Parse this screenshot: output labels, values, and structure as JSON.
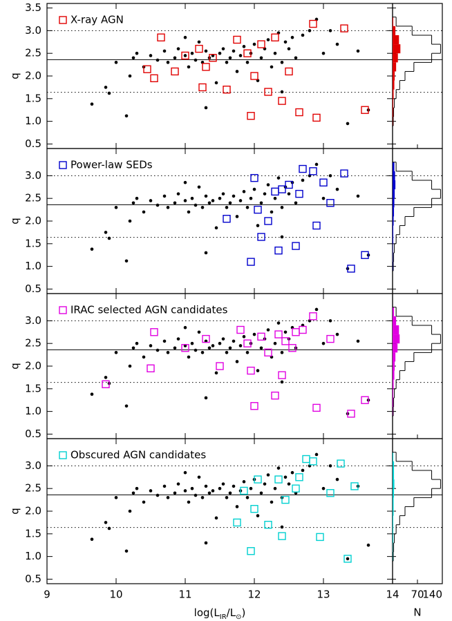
{
  "chart_data": [
    {
      "type": "scatter",
      "ylabel": "q",
      "xlim": [
        9,
        14
      ],
      "xticks": [
        9,
        10,
        11,
        12,
        13,
        14
      ],
      "ylim": [
        0.4,
        3.6
      ],
      "yticks": [
        0.5,
        1.0,
        1.5,
        2.0,
        2.5,
        3.0,
        3.5
      ],
      "reference_lines": [
        {
          "value": 2.36,
          "style": "solid"
        },
        {
          "value": 3.0,
          "style": "dotted"
        },
        {
          "value": 1.64,
          "style": "dotted"
        }
      ],
      "series": [
        {
          "marker": "dot",
          "color": "#000000",
          "x": [
            9.65,
            9.85,
            9.9,
            10.0,
            10.15,
            10.25,
            10.3,
            10.4,
            10.5,
            10.6,
            10.7,
            10.75,
            10.85,
            10.9,
            11.0,
            11.05,
            11.1,
            11.15,
            11.2,
            11.25,
            11.3,
            11.35,
            11.4,
            11.45,
            11.5,
            11.55,
            11.6,
            11.65,
            11.7,
            11.75,
            11.8,
            11.85,
            11.9,
            11.95,
            12.0,
            12.05,
            12.1,
            12.15,
            12.2,
            12.25,
            12.3,
            12.35,
            12.4,
            12.45,
            12.5,
            12.55,
            12.6,
            12.7,
            12.8,
            12.9,
            13.0,
            13.1,
            13.2,
            13.35,
            13.5,
            13.65,
            10.2,
            11.3,
            12.4,
            11.0
          ],
          "values": [
            1.38,
            1.75,
            1.62,
            2.3,
            1.12,
            2.4,
            2.5,
            2.2,
            2.45,
            2.35,
            2.55,
            2.3,
            2.4,
            2.6,
            2.45,
            2.2,
            2.5,
            2.35,
            2.75,
            2.3,
            2.55,
            2.4,
            2.45,
            1.85,
            2.5,
            2.6,
            2.3,
            2.4,
            2.55,
            2.1,
            2.45,
            2.65,
            2.3,
            2.5,
            2.7,
            1.9,
            2.4,
            2.6,
            2.8,
            2.2,
            2.5,
            2.95,
            2.3,
            2.75,
            2.6,
            2.85,
            2.4,
            2.9,
            3.0,
            3.25,
            2.5,
            3.0,
            2.7,
            0.95,
            2.55,
            1.25,
            2.0,
            1.3,
            1.65,
            2.85
          ]
        },
        {
          "name": "X-ray AGN",
          "marker": "square",
          "color": "#e00000",
          "x": [
            10.45,
            10.55,
            10.65,
            10.85,
            11.0,
            11.2,
            11.25,
            11.4,
            11.6,
            11.75,
            11.9,
            11.95,
            12.1,
            12.2,
            12.3,
            12.5,
            12.65,
            12.85,
            12.9,
            13.3,
            13.6,
            11.3,
            12.4,
            12.0
          ],
          "values": [
            2.15,
            1.95,
            2.85,
            2.1,
            2.45,
            2.6,
            1.75,
            2.4,
            1.7,
            2.8,
            2.5,
            1.12,
            2.7,
            1.65,
            2.85,
            2.1,
            1.2,
            3.15,
            1.08,
            3.05,
            1.25,
            2.2,
            1.45,
            2.0
          ]
        }
      ],
      "histogram": {
        "bins": [
          0.9,
          1.1,
          1.3,
          1.5,
          1.7,
          1.9,
          2.1,
          2.3,
          2.5,
          2.7,
          2.9,
          3.1,
          3.3
        ],
        "counts_all": [
          2,
          3,
          5,
          10,
          20,
          35,
          60,
          110,
          135,
          110,
          55,
          10
        ],
        "counts_selected": [
          1,
          2,
          2,
          3,
          5,
          6,
          10,
          15,
          22,
          18,
          8,
          2
        ],
        "xlim": [
          0,
          140
        ],
        "xticks": [
          70,
          140
        ]
      }
    },
    {
      "type": "scatter",
      "ylabel": "q",
      "xlim": [
        9,
        14
      ],
      "xticks": [
        9,
        10,
        11,
        12,
        13,
        14
      ],
      "ylim": [
        0.4,
        3.6
      ],
      "yticks": [
        0.5,
        1.0,
        1.5,
        2.0,
        2.5,
        3.0
      ],
      "reference_lines": [
        {
          "value": 2.36,
          "style": "solid"
        },
        {
          "value": 3.0,
          "style": "dotted"
        },
        {
          "value": 1.64,
          "style": "dotted"
        }
      ],
      "series": [
        {
          "marker": "dot",
          "color": "#000000",
          "x": [
            9.65,
            9.85,
            9.9,
            10.0,
            10.15,
            10.25,
            10.3,
            10.4,
            10.5,
            10.6,
            10.7,
            10.75,
            10.85,
            10.9,
            11.0,
            11.05,
            11.1,
            11.15,
            11.2,
            11.25,
            11.3,
            11.35,
            11.4,
            11.45,
            11.5,
            11.55,
            11.6,
            11.65,
            11.7,
            11.75,
            11.8,
            11.85,
            11.9,
            11.95,
            12.0,
            12.05,
            12.1,
            12.15,
            12.2,
            12.25,
            12.3,
            12.35,
            12.4,
            12.45,
            12.5,
            12.55,
            12.6,
            12.7,
            12.8,
            12.9,
            13.0,
            13.1,
            13.2,
            13.35,
            13.5,
            13.65,
            10.2,
            11.3,
            12.4,
            11.0
          ],
          "values": [
            1.38,
            1.75,
            1.62,
            2.3,
            1.12,
            2.4,
            2.5,
            2.2,
            2.45,
            2.35,
            2.55,
            2.3,
            2.4,
            2.6,
            2.45,
            2.2,
            2.5,
            2.35,
            2.75,
            2.3,
            2.55,
            2.4,
            2.45,
            1.85,
            2.5,
            2.6,
            2.3,
            2.4,
            2.55,
            2.1,
            2.45,
            2.65,
            2.3,
            2.5,
            2.7,
            1.9,
            2.4,
            2.6,
            2.8,
            2.2,
            2.5,
            2.95,
            2.3,
            2.75,
            2.6,
            2.85,
            2.4,
            2.9,
            3.0,
            3.25,
            2.5,
            3.0,
            2.7,
            0.95,
            2.55,
            1.25,
            2.0,
            1.3,
            1.65,
            2.85
          ]
        },
        {
          "name": "Power-law SEDs",
          "marker": "square",
          "color": "#0000cc",
          "x": [
            11.6,
            11.95,
            12.0,
            12.05,
            12.1,
            12.2,
            12.3,
            12.35,
            12.4,
            12.5,
            12.6,
            12.65,
            12.7,
            12.85,
            12.9,
            13.0,
            13.1,
            13.3,
            13.4,
            13.6
          ],
          "values": [
            2.05,
            1.1,
            2.95,
            2.25,
            1.65,
            2.0,
            2.65,
            1.35,
            2.7,
            2.8,
            1.45,
            2.6,
            3.15,
            3.1,
            1.9,
            2.85,
            2.4,
            3.05,
            0.95,
            1.25
          ]
        }
      ],
      "histogram": {
        "bins": [
          0.9,
          1.1,
          1.3,
          1.5,
          1.7,
          1.9,
          2.1,
          2.3,
          2.5,
          2.7,
          2.9,
          3.1,
          3.3
        ],
        "counts_all": [
          2,
          3,
          5,
          10,
          20,
          35,
          60,
          110,
          135,
          110,
          55,
          10
        ],
        "counts_selected": [
          1,
          1,
          1,
          2,
          2,
          3,
          4,
          5,
          6,
          8,
          7,
          5
        ],
        "xlim": [
          0,
          140
        ],
        "xticks": [
          70,
          140
        ]
      }
    },
    {
      "type": "scatter",
      "ylabel": "q",
      "xlim": [
        9,
        14
      ],
      "xticks": [
        9,
        10,
        11,
        12,
        13,
        14
      ],
      "ylim": [
        0.4,
        3.6
      ],
      "yticks": [
        0.5,
        1.0,
        1.5,
        2.0,
        2.5,
        3.0
      ],
      "reference_lines": [
        {
          "value": 2.36,
          "style": "solid"
        },
        {
          "value": 3.0,
          "style": "dotted"
        },
        {
          "value": 1.64,
          "style": "dotted"
        }
      ],
      "series": [
        {
          "marker": "dot",
          "color": "#000000",
          "x": [
            9.65,
            9.85,
            9.9,
            10.0,
            10.15,
            10.25,
            10.3,
            10.4,
            10.5,
            10.6,
            10.7,
            10.75,
            10.85,
            10.9,
            11.0,
            11.05,
            11.1,
            11.15,
            11.2,
            11.25,
            11.3,
            11.35,
            11.4,
            11.45,
            11.5,
            11.55,
            11.6,
            11.65,
            11.7,
            11.75,
            11.8,
            11.85,
            11.9,
            11.95,
            12.0,
            12.05,
            12.1,
            12.15,
            12.2,
            12.25,
            12.3,
            12.35,
            12.4,
            12.45,
            12.5,
            12.55,
            12.6,
            12.7,
            12.8,
            12.9,
            13.0,
            13.1,
            13.2,
            13.35,
            13.5,
            13.65,
            10.2,
            11.3,
            12.4,
            11.0
          ],
          "values": [
            1.38,
            1.75,
            1.62,
            2.3,
            1.12,
            2.4,
            2.5,
            2.2,
            2.45,
            2.35,
            2.55,
            2.3,
            2.4,
            2.6,
            2.45,
            2.2,
            2.5,
            2.35,
            2.75,
            2.3,
            2.55,
            2.4,
            2.45,
            1.85,
            2.5,
            2.6,
            2.3,
            2.4,
            2.55,
            2.1,
            2.45,
            2.65,
            2.3,
            2.5,
            2.7,
            1.9,
            2.4,
            2.6,
            2.8,
            2.2,
            2.5,
            2.95,
            2.3,
            2.75,
            2.6,
            2.85,
            2.4,
            2.9,
            3.0,
            3.25,
            2.5,
            3.0,
            2.7,
            0.95,
            2.55,
            1.25,
            2.0,
            1.3,
            1.65,
            2.85
          ]
        },
        {
          "name": "IRAC selected AGN candidates",
          "marker": "square",
          "color": "#e000e0",
          "x": [
            9.85,
            10.5,
            10.55,
            11.0,
            11.3,
            11.5,
            11.8,
            11.9,
            12.0,
            12.1,
            12.2,
            12.3,
            12.35,
            12.45,
            12.6,
            12.7,
            12.85,
            12.9,
            13.1,
            13.4,
            13.6,
            11.95,
            12.4,
            12.55
          ],
          "values": [
            1.6,
            1.95,
            2.75,
            2.4,
            2.6,
            2.0,
            2.8,
            2.5,
            1.12,
            2.65,
            2.3,
            1.35,
            2.7,
            2.55,
            2.75,
            2.8,
            3.1,
            1.08,
            2.6,
            0.95,
            1.25,
            1.9,
            1.8,
            2.4
          ]
        }
      ],
      "histogram": {
        "bins": [
          0.9,
          1.1,
          1.3,
          1.5,
          1.7,
          1.9,
          2.1,
          2.3,
          2.5,
          2.7,
          2.9,
          3.1,
          3.3
        ],
        "counts_all": [
          2,
          3,
          5,
          10,
          20,
          35,
          60,
          110,
          135,
          110,
          55,
          10
        ],
        "counts_selected": [
          1,
          2,
          2,
          3,
          5,
          6,
          8,
          14,
          20,
          18,
          10,
          4
        ],
        "xlim": [
          0,
          140
        ],
        "xticks": [
          70,
          140
        ]
      }
    },
    {
      "type": "scatter",
      "ylabel": "q",
      "xlabel": [
        "log(L",
        "IR",
        "/L",
        "⊙",
        ")"
      ],
      "xlim": [
        9,
        14
      ],
      "xticks": [
        9,
        10,
        11,
        12,
        13,
        14
      ],
      "ylim": [
        0.4,
        3.6
      ],
      "yticks": [
        0.5,
        1.0,
        1.5,
        2.0,
        2.5,
        3.0
      ],
      "reference_lines": [
        {
          "value": 2.36,
          "style": "solid"
        },
        {
          "value": 3.0,
          "style": "dotted"
        },
        {
          "value": 1.64,
          "style": "dotted"
        }
      ],
      "series": [
        {
          "marker": "dot",
          "color": "#000000",
          "x": [
            9.65,
            9.85,
            9.9,
            10.0,
            10.15,
            10.25,
            10.3,
            10.4,
            10.5,
            10.6,
            10.7,
            10.75,
            10.85,
            10.9,
            11.0,
            11.05,
            11.1,
            11.15,
            11.2,
            11.25,
            11.3,
            11.35,
            11.4,
            11.45,
            11.5,
            11.55,
            11.6,
            11.65,
            11.7,
            11.75,
            11.8,
            11.85,
            11.9,
            11.95,
            12.0,
            12.05,
            12.1,
            12.15,
            12.2,
            12.25,
            12.3,
            12.35,
            12.4,
            12.45,
            12.5,
            12.55,
            12.6,
            12.7,
            12.8,
            12.9,
            13.0,
            13.1,
            13.2,
            13.35,
            13.5,
            13.65,
            10.2,
            11.3,
            12.4,
            11.0
          ],
          "values": [
            1.38,
            1.75,
            1.62,
            2.3,
            1.12,
            2.4,
            2.5,
            2.2,
            2.45,
            2.35,
            2.55,
            2.3,
            2.4,
            2.6,
            2.45,
            2.2,
            2.5,
            2.35,
            2.75,
            2.3,
            2.55,
            2.4,
            2.45,
            1.85,
            2.5,
            2.6,
            2.3,
            2.4,
            2.55,
            2.1,
            2.45,
            2.65,
            2.3,
            2.5,
            2.7,
            1.9,
            2.4,
            2.6,
            2.8,
            2.2,
            2.5,
            2.95,
            2.3,
            2.75,
            2.6,
            2.85,
            2.4,
            2.9,
            3.0,
            3.25,
            2.5,
            3.0,
            2.7,
            0.95,
            2.55,
            1.25,
            2.0,
            1.3,
            1.65,
            2.85
          ]
        },
        {
          "name": "Obscured AGN candidates",
          "marker": "square",
          "color": "#00d0d0",
          "x": [
            11.75,
            11.85,
            11.95,
            12.0,
            12.05,
            12.2,
            12.35,
            12.4,
            12.45,
            12.6,
            12.65,
            12.75,
            12.85,
            12.95,
            13.1,
            13.25,
            13.35,
            13.45
          ],
          "values": [
            1.75,
            2.45,
            1.12,
            2.05,
            2.7,
            1.7,
            2.7,
            1.45,
            2.25,
            2.5,
            2.75,
            3.15,
            3.1,
            1.43,
            2.4,
            3.05,
            0.95,
            2.55
          ]
        }
      ],
      "histogram": {
        "bins": [
          0.9,
          1.1,
          1.3,
          1.5,
          1.7,
          1.9,
          2.1,
          2.3,
          2.5,
          2.7,
          2.9,
          3.1,
          3.3
        ],
        "counts_all": [
          2,
          3,
          5,
          10,
          20,
          35,
          60,
          110,
          135,
          110,
          55,
          10
        ],
        "counts_selected": [
          1,
          1,
          2,
          2,
          2,
          3,
          3,
          4,
          5,
          4,
          4,
          2
        ],
        "xlim": [
          0,
          140
        ],
        "xticks": [
          70,
          140
        ],
        "xlabel": "N"
      }
    }
  ]
}
